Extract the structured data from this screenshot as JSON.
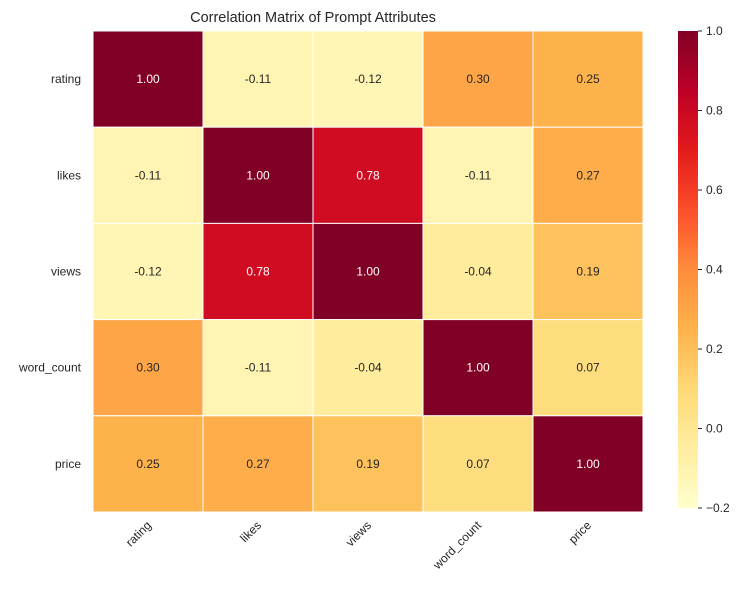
{
  "chart_data": {
    "type": "heatmap",
    "title": "Correlation Matrix of Prompt Attributes",
    "x_labels": [
      "rating",
      "likes",
      "views",
      "word_count",
      "price"
    ],
    "y_labels": [
      "rating",
      "likes",
      "views",
      "word_count",
      "price"
    ],
    "values": [
      [
        1.0,
        -0.11,
        -0.12,
        0.3,
        0.25
      ],
      [
        -0.11,
        1.0,
        0.78,
        -0.11,
        0.27
      ],
      [
        -0.12,
        0.78,
        1.0,
        -0.04,
        0.19
      ],
      [
        0.3,
        -0.11,
        -0.04,
        1.0,
        0.07
      ],
      [
        0.25,
        0.27,
        0.19,
        0.07,
        1.0
      ]
    ],
    "cell_labels": [
      [
        "1.00",
        "-0.11",
        "-0.12",
        "0.30",
        "0.25"
      ],
      [
        "-0.11",
        "1.00",
        "0.78",
        "-0.11",
        "0.27"
      ],
      [
        "-0.12",
        "0.78",
        "1.00",
        "-0.04",
        "0.19"
      ],
      [
        "0.30",
        "-0.11",
        "-0.04",
        "1.00",
        "0.07"
      ],
      [
        "0.25",
        "0.27",
        "0.19",
        "0.07",
        "1.00"
      ]
    ],
    "colormap": "YlOrRd",
    "vmin": -0.2,
    "vmax": 1.0,
    "colorbar": {
      "ticks": [
        -0.2,
        0.0,
        0.2,
        0.4,
        0.6,
        0.8,
        1.0
      ],
      "tick_labels": [
        "−0.2",
        "0.0",
        "0.2",
        "0.4",
        "0.6",
        "0.8",
        "1.0"
      ]
    },
    "colormap_stops": [
      "#ffffcc",
      "#ffeda0",
      "#fed976",
      "#feb24c",
      "#fd8d3c",
      "#fc4e2a",
      "#e31a1c",
      "#bd0026",
      "#800026"
    ],
    "grid_line_color": "#ffffff",
    "dark_text_color": "#262626",
    "light_text_color": "#ffffff"
  }
}
